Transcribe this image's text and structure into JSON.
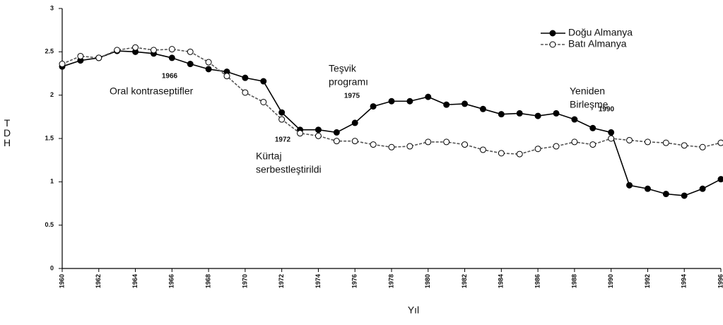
{
  "chart_data": {
    "type": "line",
    "y_label": "TDH",
    "x_label": "Yıl",
    "x": [
      1960,
      1961,
      1962,
      1963,
      1964,
      1965,
      1966,
      1967,
      1968,
      1969,
      1970,
      1971,
      1972,
      1973,
      1974,
      1975,
      1976,
      1977,
      1978,
      1979,
      1980,
      1981,
      1982,
      1983,
      1984,
      1985,
      1986,
      1987,
      1988,
      1989,
      1990,
      1991,
      1992,
      1993,
      1994,
      1995,
      1996
    ],
    "series": [
      {
        "name": "Doğu Almanya",
        "color": "#000000",
        "marker_fill": "#000000",
        "values": [
          2.33,
          2.4,
          2.43,
          2.51,
          2.5,
          2.48,
          2.43,
          2.36,
          2.3,
          2.27,
          2.2,
          2.16,
          1.8,
          1.6,
          1.6,
          1.57,
          1.68,
          1.87,
          1.93,
          1.93,
          1.98,
          1.89,
          1.9,
          1.84,
          1.78,
          1.79,
          1.76,
          1.79,
          1.72,
          1.62,
          1.57,
          0.96,
          0.92,
          0.86,
          0.84,
          0.92,
          1.03
        ]
      },
      {
        "name": "Batı Almanya",
        "color": "#555555",
        "marker_fill": "#ffffff",
        "values": [
          2.36,
          2.45,
          2.43,
          2.52,
          2.55,
          2.52,
          2.53,
          2.5,
          2.38,
          2.22,
          2.03,
          1.92,
          1.72,
          1.56,
          1.53,
          1.47,
          1.47,
          1.43,
          1.4,
          1.41,
          1.46,
          1.46,
          1.43,
          1.37,
          1.33,
          1.32,
          1.38,
          1.41,
          1.46,
          1.43,
          1.5,
          1.48,
          1.46,
          1.45,
          1.42,
          1.4,
          1.45
        ]
      }
    ],
    "xlim": [
      1960,
      1996
    ],
    "xticks": [
      1960,
      1962,
      1964,
      1966,
      1968,
      1970,
      1972,
      1974,
      1976,
      1978,
      1980,
      1982,
      1984,
      1986,
      1988,
      1990,
      1992,
      1994,
      1996
    ],
    "ylim": [
      0,
      3
    ],
    "yticks": [
      0,
      0.5,
      1,
      1.5,
      2,
      2.5,
      3
    ],
    "legend": "top-right",
    "annotations": [
      {
        "label": "1966",
        "text": [
          "Oral kontraseptifler"
        ]
      },
      {
        "label": "1972",
        "text": [
          "Kürtaj",
          "serbestleştirildi"
        ]
      },
      {
        "label": "1975",
        "text": [
          "Teşvik",
          "programı"
        ]
      },
      {
        "label": "1990",
        "text": [
          "Yeniden",
          "Birleşme"
        ]
      }
    ]
  }
}
